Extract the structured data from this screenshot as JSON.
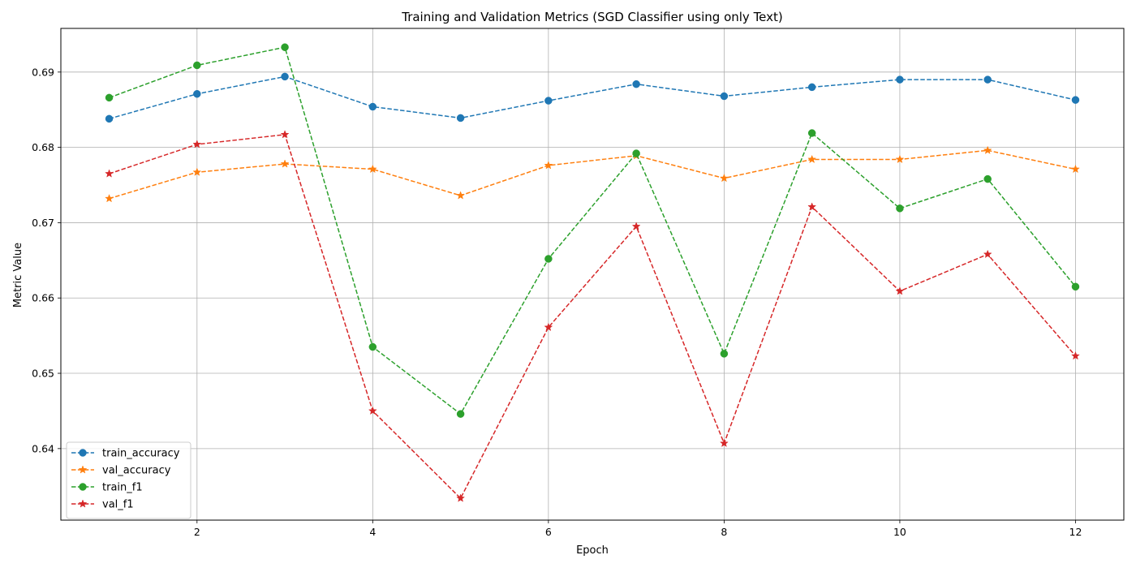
{
  "chart_data": {
    "type": "line",
    "title": "Training and Validation Metrics (SGD Classifier using only Text)",
    "xlabel": "Epoch",
    "ylabel": "Metric Value",
    "xlim": [
      0.45,
      12.55
    ],
    "ylim": [
      0.6305,
      0.6958
    ],
    "xticks": [
      2,
      4,
      6,
      8,
      10,
      12
    ],
    "yticks": [
      0.64,
      0.65,
      0.66,
      0.67,
      0.68,
      0.69
    ],
    "ytick_labels": [
      "0.64",
      "0.65",
      "0.66",
      "0.67",
      "0.68",
      "0.69"
    ],
    "grid": true,
    "legend_position": "lower-left",
    "x": [
      1,
      2,
      3,
      4,
      5,
      6,
      7,
      8,
      9,
      10,
      11,
      12
    ],
    "series": [
      {
        "name": "train_accuracy",
        "color": "#1f77b4",
        "marker": "circle",
        "values": [
          0.6838,
          0.6871,
          0.6894,
          0.6854,
          0.6839,
          0.6862,
          0.6884,
          0.6868,
          0.688,
          0.689,
          0.689,
          0.6863
        ]
      },
      {
        "name": "val_accuracy",
        "color": "#ff7f0e",
        "marker": "star",
        "values": [
          0.6732,
          0.6767,
          0.6778,
          0.6771,
          0.6736,
          0.6776,
          0.6789,
          0.6759,
          0.6784,
          0.6784,
          0.6796,
          0.6771
        ]
      },
      {
        "name": "train_f1",
        "color": "#2ca02c",
        "marker": "circle",
        "values": [
          0.6866,
          0.6909,
          0.6933,
          0.6535,
          0.6446,
          0.6652,
          0.6792,
          0.6526,
          0.6819,
          0.6719,
          0.6758,
          0.6615
        ]
      },
      {
        "name": "val_f1",
        "color": "#d62728",
        "marker": "star",
        "values": [
          0.6765,
          0.6804,
          0.6817,
          0.645,
          0.6334,
          0.6561,
          0.6695,
          0.6407,
          0.6721,
          0.6609,
          0.6658,
          0.6523
        ]
      }
    ]
  }
}
